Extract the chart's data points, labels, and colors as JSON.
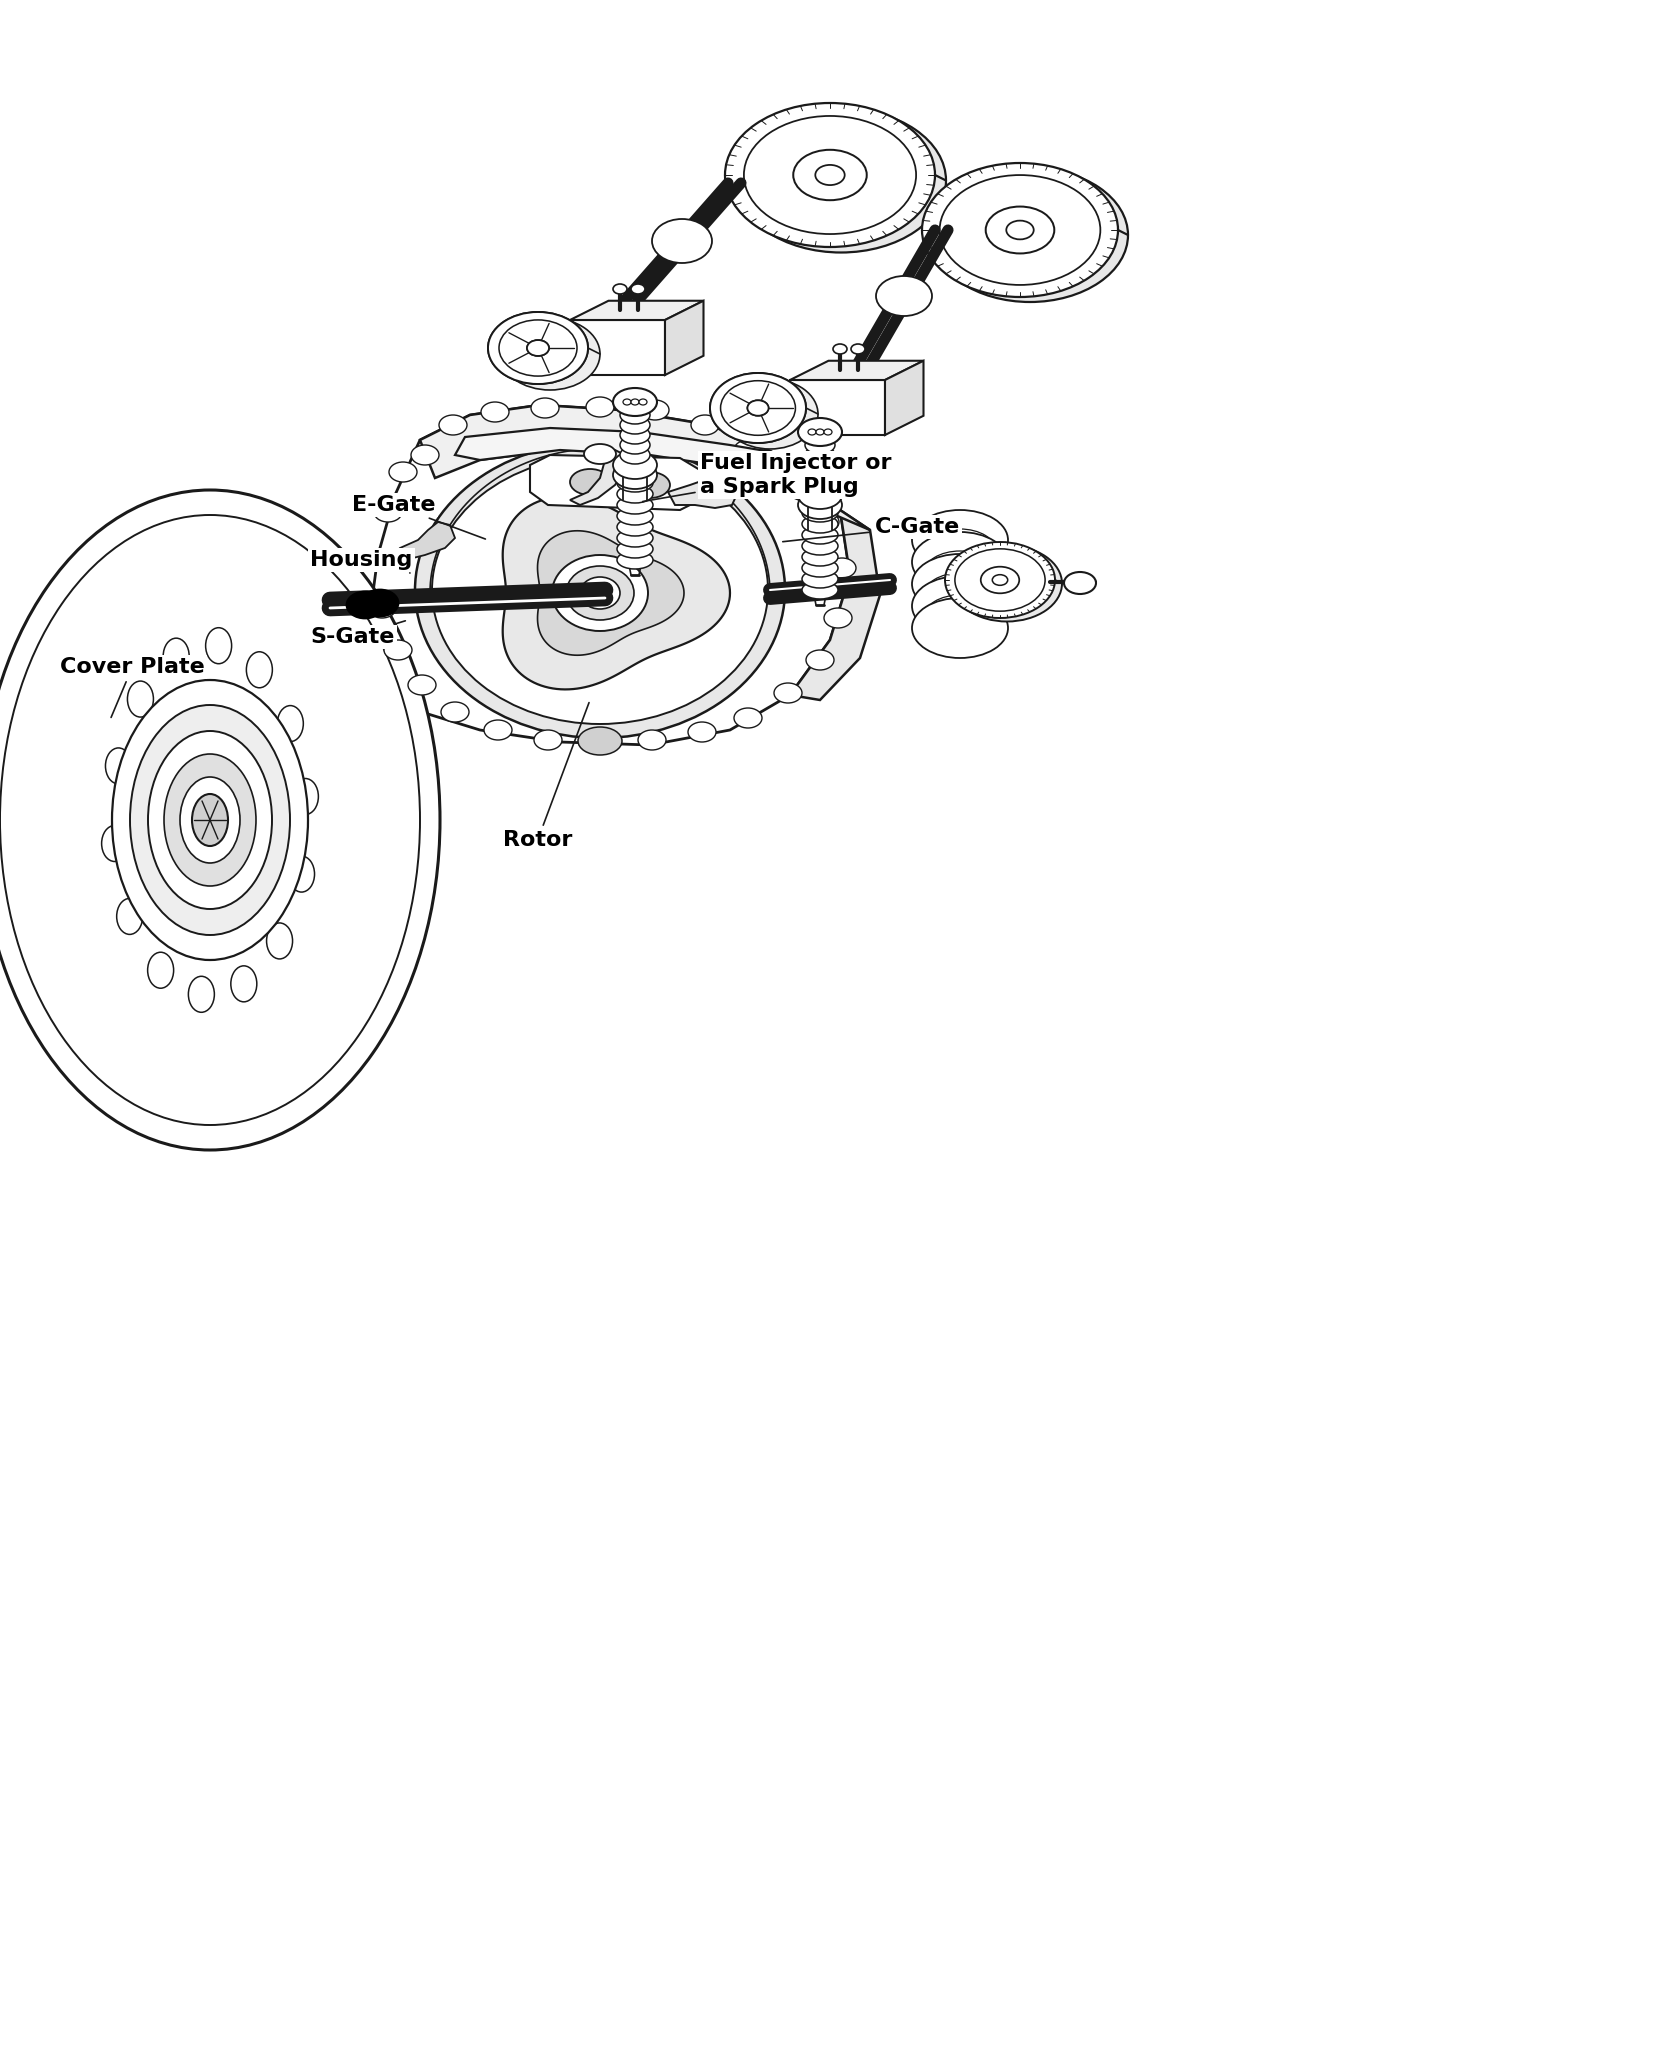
{
  "background_color": "#ffffff",
  "line_color": "#1a1a1a",
  "labels": {
    "fuel_injector": "Fuel Injector or\na Spark Plug",
    "e_gate": "E-Gate",
    "c_gate": "C-Gate",
    "housing": "Housing",
    "cover_plate": "Cover Plate",
    "s_gate": "S-Gate",
    "rotor": "Rotor"
  },
  "figsize": [
    16.53,
    20.48
  ],
  "dpi": 100
}
